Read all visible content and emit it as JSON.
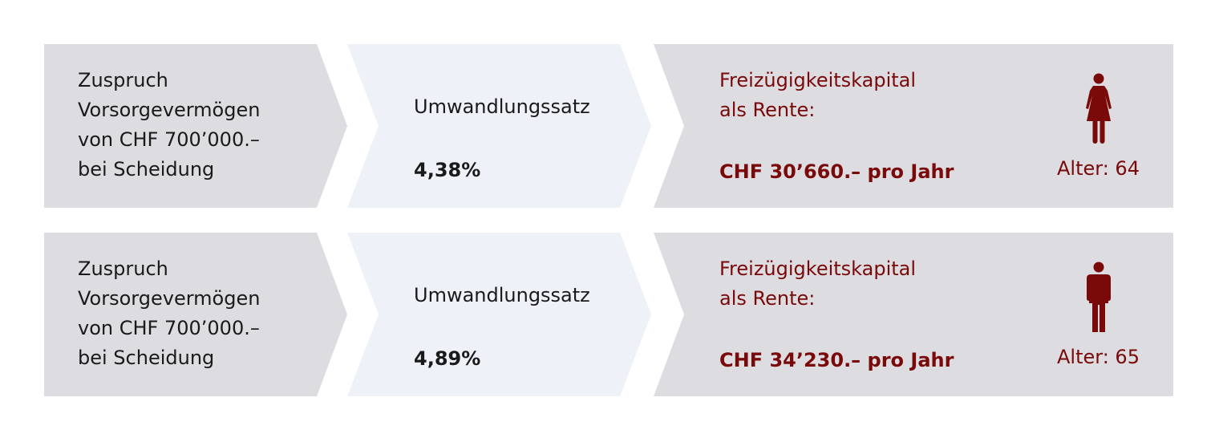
{
  "colors": {
    "panel_gray": "#dcdce1",
    "panel_light": "#eef1f7",
    "accent": "#7a0a0a",
    "text": "#1a1a1a"
  },
  "rows": [
    {
      "claim_lines": [
        "Zuspruch",
        "Vorsorgevermögen",
        "von CHF 700’000.–",
        "bei Scheidung"
      ],
      "rate_label": "Umwandlungssatz",
      "rate_value": "4,38%",
      "result_lines": [
        "Freizügigkeitskapital",
        "als Rente:"
      ],
      "result_value": "CHF 30’660.– pro Jahr",
      "icon": "woman-icon",
      "age": "Alter: 64"
    },
    {
      "claim_lines": [
        "Zuspruch",
        "Vorsorgevermögen",
        "von CHF 700’000.–",
        "bei Scheidung"
      ],
      "rate_label": "Umwandlungssatz",
      "rate_value": "4,89%",
      "result_lines": [
        "Freizügigkeitskapital",
        "als Rente:"
      ],
      "result_value": "CHF 34’230.– pro Jahr",
      "icon": "man-icon",
      "age": "Alter: 65"
    }
  ]
}
